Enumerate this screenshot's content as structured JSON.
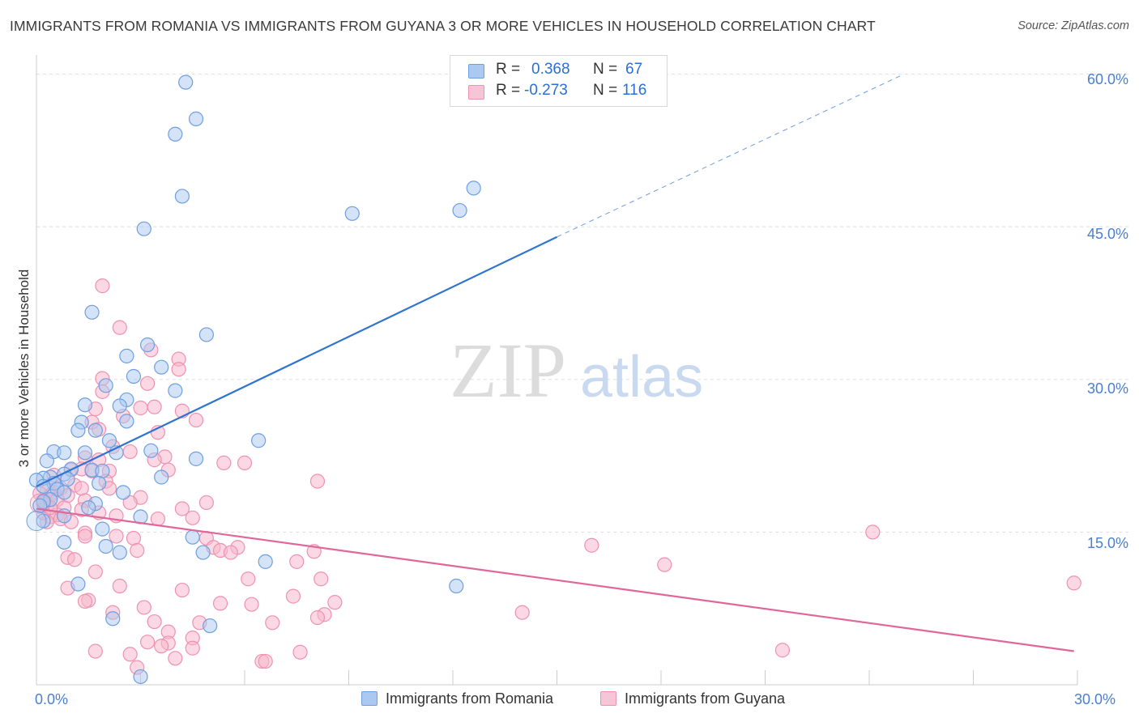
{
  "header": {
    "title": "IMMIGRANTS FROM ROMANIA VS IMMIGRANTS FROM GUYANA 3 OR MORE VEHICLES IN HOUSEHOLD CORRELATION CHART",
    "source": "Source: ZipAtlas.com"
  },
  "watermark": {
    "zip": "ZIP",
    "atlas": "atlas"
  },
  "stats_legend": {
    "romania": {
      "r_label": "R =",
      "r_value": "0.368",
      "n_label": "N =",
      "n_value": "67"
    },
    "guyana": {
      "r_label": "R =",
      "r_value": "-0.273",
      "n_label": "N =",
      "n_value": "116"
    }
  },
  "colors": {
    "romania_fill": "#aac8f0",
    "romania_stroke": "#6e9fe0",
    "romania_line": "#2f74d0",
    "guyana_fill": "#f7b8cc",
    "guyana_stroke": "#ee92b0",
    "guyana_line": "#e0679a",
    "tick_text": "#4a7fd0",
    "grid": "#dddddd"
  },
  "chart_data": {
    "type": "scatter",
    "title": "IMMIGRANTS FROM ROMANIA VS IMMIGRANTS FROM GUYANA 3 OR MORE VEHICLES IN HOUSEHOLD CORRELATION CHART",
    "xlabel": "",
    "ylabel": "3 or more Vehicles in Household",
    "xlim": [
      0,
      30
    ],
    "ylim": [
      0,
      61
    ],
    "x_ticks_labeled": [
      "0.0%",
      "30.0%"
    ],
    "y_ticks": [
      15,
      30,
      45,
      60
    ],
    "y_tick_labels": [
      "15.0%",
      "30.0%",
      "45.0%",
      "60.0%"
    ],
    "grid": "horizontal dashed",
    "legend_position": "bottom",
    "series": [
      {
        "name": "Immigrants from Romania",
        "r": 0.368,
        "n": 67,
        "trend": {
          "x0": 0,
          "y0": 19.5,
          "x1": 15,
          "y1": 44.0,
          "dashed_to_x": 25,
          "dashed_to_y": 60.0
        },
        "points": [
          [
            4.3,
            59.2
          ],
          [
            4.6,
            55.6
          ],
          [
            4.0,
            54.1
          ],
          [
            4.2,
            48.0
          ],
          [
            3.1,
            44.8
          ],
          [
            9.1,
            46.3
          ],
          [
            12.2,
            46.6
          ],
          [
            12.6,
            48.8
          ],
          [
            1.6,
            36.6
          ],
          [
            4.9,
            34.4
          ],
          [
            3.2,
            33.4
          ],
          [
            2.6,
            32.3
          ],
          [
            3.6,
            31.2
          ],
          [
            2.8,
            30.3
          ],
          [
            4.0,
            28.9
          ],
          [
            2.0,
            29.4
          ],
          [
            2.6,
            28.0
          ],
          [
            1.4,
            27.5
          ],
          [
            2.4,
            27.4
          ],
          [
            2.6,
            25.9
          ],
          [
            1.3,
            25.8
          ],
          [
            1.2,
            25.0
          ],
          [
            1.7,
            25.0
          ],
          [
            6.4,
            24.0
          ],
          [
            2.1,
            24.0
          ],
          [
            0.5,
            22.9
          ],
          [
            0.8,
            22.8
          ],
          [
            1.4,
            22.8
          ],
          [
            2.3,
            22.8
          ],
          [
            3.3,
            23.0
          ],
          [
            4.6,
            22.2
          ],
          [
            0.3,
            22.0
          ],
          [
            1.0,
            21.2
          ],
          [
            1.6,
            21.1
          ],
          [
            1.9,
            21.0
          ],
          [
            0.8,
            20.7
          ],
          [
            0.4,
            20.4
          ],
          [
            0.2,
            20.3
          ],
          [
            0.0,
            20.1
          ],
          [
            0.9,
            20.2
          ],
          [
            3.6,
            20.4
          ],
          [
            0.5,
            19.8
          ],
          [
            1.8,
            19.8
          ],
          [
            0.2,
            19.5
          ],
          [
            0.6,
            19.2
          ],
          [
            0.8,
            18.9
          ],
          [
            2.5,
            18.9
          ],
          [
            0.4,
            18.2
          ],
          [
            0.2,
            18.0
          ],
          [
            1.7,
            17.8
          ],
          [
            1.5,
            17.4
          ],
          [
            0.1,
            17.6
          ],
          [
            0.8,
            16.6
          ],
          [
            3.0,
            16.5
          ],
          [
            0.2,
            16.1
          ],
          [
            1.9,
            15.3
          ],
          [
            4.5,
            14.5
          ],
          [
            0.8,
            14.0
          ],
          [
            2.0,
            13.6
          ],
          [
            2.4,
            13.0
          ],
          [
            4.8,
            13.0
          ],
          [
            6.6,
            12.1
          ],
          [
            1.2,
            9.9
          ],
          [
            12.1,
            9.7
          ],
          [
            2.2,
            6.5
          ],
          [
            5.0,
            5.8
          ],
          [
            3.0,
            0.8
          ]
        ]
      },
      {
        "name": "Immigrants from Guyana",
        "r": -0.273,
        "n": 116,
        "trend": {
          "x0": 0,
          "y0": 17.3,
          "x1": 29.9,
          "y1": 3.3
        },
        "points": [
          [
            1.9,
            39.2
          ],
          [
            2.4,
            35.1
          ],
          [
            3.3,
            32.9
          ],
          [
            4.1,
            32.0
          ],
          [
            4.1,
            31.0
          ],
          [
            1.9,
            30.1
          ],
          [
            3.2,
            29.6
          ],
          [
            1.9,
            28.8
          ],
          [
            1.7,
            27.1
          ],
          [
            3.0,
            27.2
          ],
          [
            3.4,
            27.3
          ],
          [
            4.2,
            26.9
          ],
          [
            2.5,
            26.4
          ],
          [
            4.6,
            26.0
          ],
          [
            1.6,
            25.8
          ],
          [
            1.8,
            25.1
          ],
          [
            3.5,
            24.8
          ],
          [
            2.2,
            23.4
          ],
          [
            2.7,
            22.9
          ],
          [
            3.7,
            22.4
          ],
          [
            1.4,
            22.3
          ],
          [
            1.8,
            22.1
          ],
          [
            3.4,
            22.1
          ],
          [
            5.4,
            21.8
          ],
          [
            6.0,
            21.8
          ],
          [
            1.3,
            21.2
          ],
          [
            1.0,
            21.1
          ],
          [
            3.8,
            21.1
          ],
          [
            1.6,
            21.0
          ],
          [
            2.1,
            21.0
          ],
          [
            0.5,
            20.6
          ],
          [
            2.0,
            20.0
          ],
          [
            8.1,
            20.0
          ],
          [
            1.1,
            19.6
          ],
          [
            0.7,
            19.3
          ],
          [
            1.3,
            19.3
          ],
          [
            2.1,
            19.3
          ],
          [
            0.3,
            19.0
          ],
          [
            0.5,
            18.9
          ],
          [
            0.1,
            18.8
          ],
          [
            0.9,
            18.6
          ],
          [
            0.4,
            18.6
          ],
          [
            3.0,
            18.4
          ],
          [
            0.6,
            18.2
          ],
          [
            0.2,
            18.1
          ],
          [
            1.4,
            18.1
          ],
          [
            4.9,
            17.9
          ],
          [
            2.7,
            17.9
          ],
          [
            0.3,
            17.6
          ],
          [
            0.8,
            17.4
          ],
          [
            1.3,
            17.2
          ],
          [
            4.2,
            17.3
          ],
          [
            1.8,
            16.9
          ],
          [
            0.6,
            16.7
          ],
          [
            2.3,
            16.6
          ],
          [
            0.4,
            16.5
          ],
          [
            4.5,
            16.4
          ],
          [
            0.7,
            16.3
          ],
          [
            3.5,
            16.3
          ],
          [
            0.3,
            16.0
          ],
          [
            24.1,
            15.0
          ],
          [
            1.4,
            14.9
          ],
          [
            1.4,
            14.6
          ],
          [
            2.3,
            14.6
          ],
          [
            2.8,
            14.4
          ],
          [
            4.9,
            14.4
          ],
          [
            5.1,
            13.5
          ],
          [
            5.8,
            13.5
          ],
          [
            2.9,
            13.2
          ],
          [
            16.0,
            13.7
          ],
          [
            5.3,
            13.2
          ],
          [
            5.6,
            13.0
          ],
          [
            0.9,
            12.5
          ],
          [
            1.1,
            12.3
          ],
          [
            7.5,
            12.1
          ],
          [
            8.0,
            13.1
          ],
          [
            18.1,
            11.8
          ],
          [
            1.7,
            11.1
          ],
          [
            6.1,
            10.4
          ],
          [
            8.2,
            10.4
          ],
          [
            2.4,
            9.7
          ],
          [
            4.2,
            9.3
          ],
          [
            0.9,
            9.5
          ],
          [
            29.9,
            10.0
          ],
          [
            7.4,
            8.7
          ],
          [
            1.5,
            8.3
          ],
          [
            1.4,
            8.2
          ],
          [
            5.3,
            8.0
          ],
          [
            6.2,
            7.9
          ],
          [
            8.6,
            8.1
          ],
          [
            3.1,
            7.6
          ],
          [
            2.2,
            7.1
          ],
          [
            14.0,
            7.1
          ],
          [
            8.3,
            6.9
          ],
          [
            8.1,
            6.6
          ],
          [
            3.4,
            6.2
          ],
          [
            4.7,
            6.1
          ],
          [
            6.8,
            6.1
          ],
          [
            3.8,
            5.2
          ],
          [
            4.5,
            4.6
          ],
          [
            3.2,
            4.2
          ],
          [
            3.8,
            4.1
          ],
          [
            3.6,
            3.8
          ],
          [
            4.5,
            3.6
          ],
          [
            1.7,
            3.3
          ],
          [
            2.7,
            3.0
          ],
          [
            7.6,
            3.2
          ],
          [
            21.5,
            3.4
          ],
          [
            4.0,
            2.6
          ],
          [
            6.5,
            2.3
          ],
          [
            6.6,
            2.3
          ],
          [
            2.9,
            1.7
          ],
          [
            0.2,
            16.9
          ],
          [
            0.4,
            17.4
          ],
          [
            1.0,
            16.0
          ],
          [
            0.2,
            17.8
          ]
        ]
      }
    ]
  },
  "bottom_legend": {
    "romania_label": "Immigrants from Romania",
    "guyana_label": "Immigrants from Guyana"
  },
  "axis_labels": {
    "x_min": "0.0%",
    "x_max": "30.0%",
    "y_label": "3 or more Vehicles in Household",
    "y_ticks": [
      "15.0%",
      "30.0%",
      "45.0%",
      "60.0%"
    ]
  }
}
